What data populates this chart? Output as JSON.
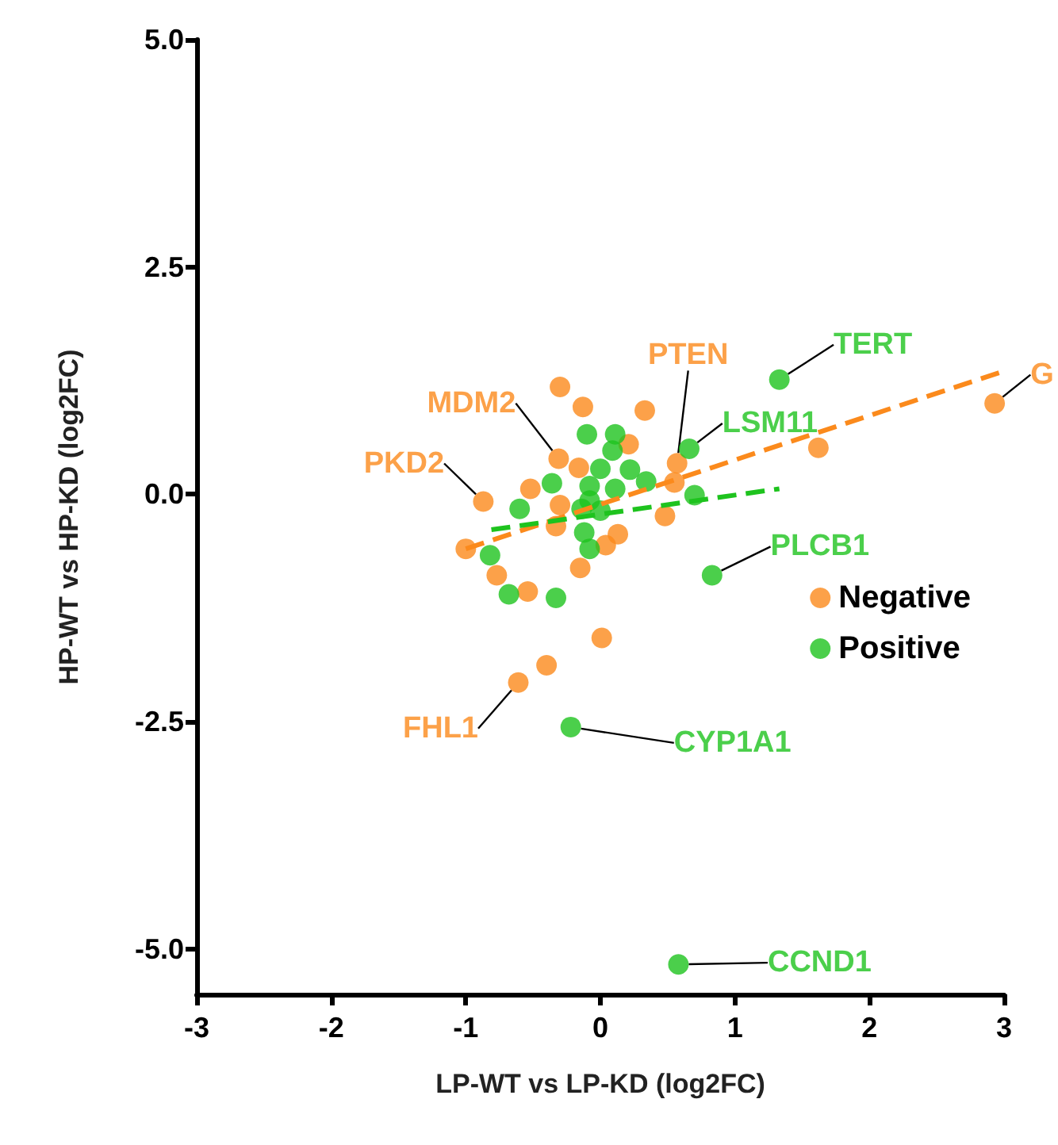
{
  "chart_data": {
    "type": "scatter",
    "xlabel": "LP-WT vs LP-KD (log2FC)",
    "ylabel": "HP-WT vs HP-KD (log2FC)",
    "xlim": [
      -3,
      3
    ],
    "xticks": [
      -3,
      -2,
      -1,
      0,
      1,
      2,
      3
    ],
    "ylim": [
      -5.5,
      5
    ],
    "yticks": [
      {
        "value": -5,
        "label": "-5.0"
      },
      {
        "value": -2.5,
        "label": "-2.5"
      },
      {
        "value": 0,
        "label": "0.0"
      },
      {
        "value": 2.5,
        "label": "2.5"
      },
      {
        "value": 5,
        "label": "5.0"
      }
    ],
    "grid": false,
    "legend": "right",
    "marker": "circle",
    "series": [
      {
        "name": "Negative",
        "color": "#fb8a1c",
        "x": [
          -0.3,
          -0.13,
          0.33,
          0.21,
          -0.31,
          -0.16,
          0.57,
          -0.52,
          -0.87,
          -0.3,
          0.55,
          0.48,
          -1.0,
          -0.33,
          0.13,
          0.04,
          -0.77,
          -0.54,
          -0.15,
          2.93,
          1.62,
          0.01,
          -0.4,
          -0.61
        ],
        "values": [
          1.18,
          0.96,
          0.92,
          0.55,
          0.39,
          0.29,
          0.34,
          0.06,
          -0.08,
          -0.12,
          0.13,
          -0.24,
          -0.6,
          -0.35,
          -0.44,
          -0.56,
          -0.89,
          -1.07,
          -0.81,
          1.0,
          0.51,
          -1.58,
          -1.88,
          -2.07
        ]
      },
      {
        "name": "Positive",
        "color": "#1ec31e",
        "x": [
          -0.1,
          0.11,
          0.09,
          0.66,
          0.0,
          0.22,
          -0.36,
          0.34,
          -0.08,
          0.11,
          -0.6,
          -0.08,
          0.0,
          0.7,
          -0.12,
          -0.08,
          -0.82,
          -0.68,
          -0.33,
          0.83,
          -0.14,
          1.33,
          -0.22,
          0.58
        ],
        "values": [
          0.66,
          0.66,
          0.48,
          0.5,
          0.28,
          0.27,
          0.12,
          0.14,
          0.09,
          0.06,
          -0.16,
          -0.07,
          -0.18,
          -0.01,
          -0.42,
          -0.6,
          -0.67,
          -1.1,
          -1.14,
          -0.89,
          -0.16,
          1.26,
          -2.56,
          -5.17
        ]
      },
      {
        "type": "line",
        "color": "#fb8a1c",
        "line_style": "dashed",
        "marker": "none",
        "x": [
          -1.0,
          2.97
        ],
        "values": [
          -0.6,
          1.34
        ]
      },
      {
        "type": "line",
        "color": "#1ec31e",
        "line_style": "dashed",
        "marker": "none",
        "x": [
          -0.81,
          1.33
        ],
        "values": [
          -0.39,
          0.06
        ]
      }
    ],
    "annotations": [
      {
        "text": "G",
        "x": 2.93,
        "y": 1.0
      },
      {
        "text": "TERT",
        "x": 1.33,
        "y": 1.26
      },
      {
        "text": "PTEN",
        "x": 0.57,
        "y": 0.34
      },
      {
        "text": "MDM2",
        "x": -0.31,
        "y": 0.39
      },
      {
        "text": "PKD2",
        "x": -0.87,
        "y": -0.08
      },
      {
        "text": "LSM11",
        "x": 0.66,
        "y": 0.5
      },
      {
        "text": "PLCB1",
        "x": 0.83,
        "y": -0.89
      },
      {
        "text": "FHL1",
        "x": -0.61,
        "y": -2.07
      },
      {
        "text": "CYP1A1",
        "x": -0.22,
        "y": -2.56
      },
      {
        "text": "CCND1",
        "x": 0.58,
        "y": -5.17
      }
    ]
  }
}
